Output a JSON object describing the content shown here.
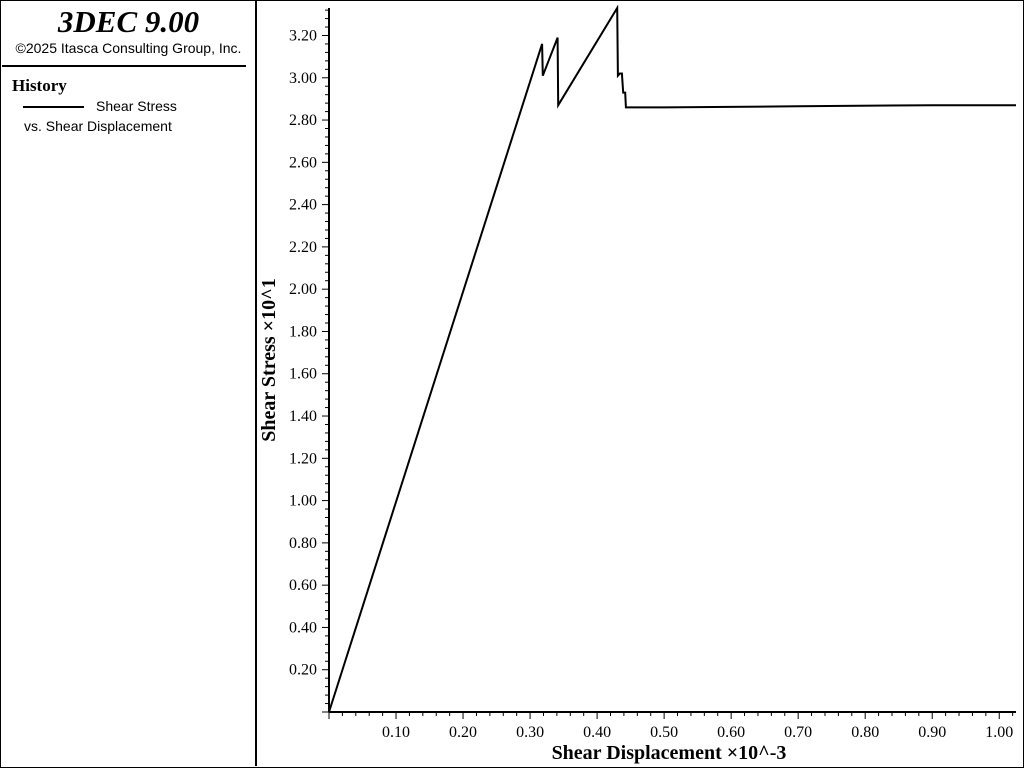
{
  "header": {
    "app_title": "3DEC 9.00",
    "copyright": "©2025 Itasca Consulting Group, Inc."
  },
  "legend": {
    "title": "History",
    "line1": "Shear Stress",
    "line2": "vs. Shear Displacement",
    "line_color": "#000000"
  },
  "chart_data": {
    "type": "line",
    "xlabel": "Shear Displacement ×10^-3",
    "ylabel": "Shear Stress ×10^1",
    "xlim": [
      0.0,
      1.025
    ],
    "ylim": [
      0.0,
      3.33
    ],
    "x_ticks": [
      "0.10",
      "0.20",
      "0.30",
      "0.40",
      "0.50",
      "0.60",
      "0.70",
      "0.80",
      "0.90",
      "1.00"
    ],
    "y_ticks": [
      "0.20",
      "0.40",
      "0.60",
      "0.80",
      "1.00",
      "1.20",
      "1.40",
      "1.60",
      "1.80",
      "2.00",
      "2.20",
      "2.40",
      "2.60",
      "2.80",
      "3.00",
      "3.20"
    ],
    "grid": false,
    "series": [
      {
        "color": "#000000",
        "x": [
          0.0,
          0.318,
          0.319,
          0.341,
          0.342,
          0.43,
          0.431,
          0.434,
          0.437,
          0.439,
          0.442,
          0.443,
          0.5,
          0.7,
          0.9,
          1.025
        ],
        "y": [
          0.0,
          3.16,
          3.01,
          3.19,
          2.87,
          3.33,
          3.01,
          3.02,
          3.02,
          2.93,
          2.93,
          2.86,
          2.86,
          2.865,
          2.87,
          2.87
        ]
      }
    ]
  }
}
